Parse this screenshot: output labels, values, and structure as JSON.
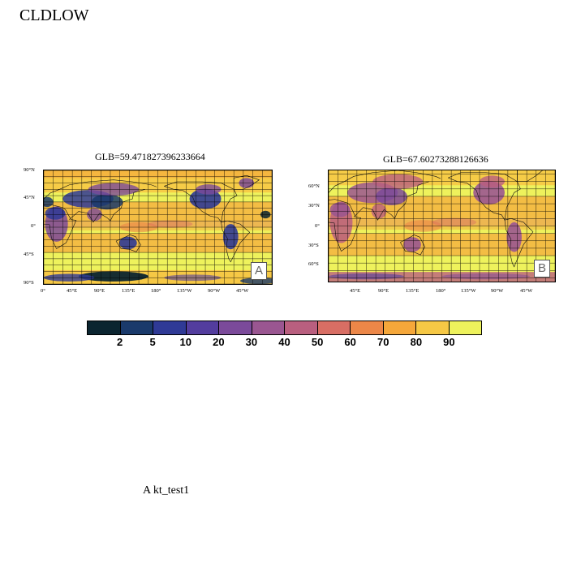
{
  "page_title": "CLDLOW",
  "footer": "A  kt_test1",
  "maps": [
    {
      "id": "A",
      "title": "GLB=59.471827396233664",
      "panel_letter": "A",
      "lon_ticks": [
        "0°",
        "45°E",
        "90°E",
        "135°E",
        "180°",
        "135°W",
        "90°W",
        "45°W"
      ],
      "lat_ticks": [
        "90°N",
        "45°N",
        "0°",
        "45°S",
        "90°S"
      ],
      "lon_range": [
        0,
        360
      ],
      "lat_range": [
        -90,
        90
      ]
    },
    {
      "id": "B",
      "title": "GLB=67.60273288126636",
      "panel_letter": "B",
      "lon_ticks": [
        "45°E",
        "90°E",
        "135°E",
        "180°",
        "135°W",
        "90°W",
        "45°W"
      ],
      "lat_ticks": [
        "60°N",
        "30°N",
        "0°",
        "30°S",
        "60°S"
      ],
      "lon_range": [
        0,
        360
      ],
      "lat_range": [
        -75,
        75
      ]
    }
  ],
  "colorbar": {
    "labels": [
      "2",
      "5",
      "10",
      "20",
      "30",
      "40",
      "50",
      "60",
      "70",
      "80",
      "90"
    ],
    "colors": [
      "#0b2530",
      "#1a3a6b",
      "#2f3a96",
      "#533d9e",
      "#7b4a9a",
      "#9a5691",
      "#b95f7f",
      "#d86e64",
      "#ec8748",
      "#f5a73a",
      "#f6c845",
      "#eef25c"
    ]
  }
}
